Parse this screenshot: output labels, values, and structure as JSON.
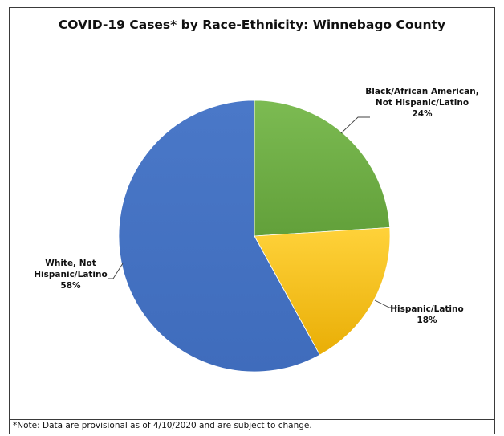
{
  "chart_data": {
    "type": "pie",
    "title": "COVID-19 Cases* by Race-Ethnicity: Winnebago County",
    "slices": [
      {
        "label_lines": [
          "Black/African American,",
          "Not Hispanic/Latino"
        ],
        "value": 24,
        "value_label": "24%",
        "color": "#70ad47"
      },
      {
        "label_lines": [
          "Hispanic/Latino"
        ],
        "value": 18,
        "value_label": "18%",
        "color": "#ffc000"
      },
      {
        "label_lines": [
          "White, Not",
          "Hispanic/Latino"
        ],
        "value": 58,
        "value_label": "58%",
        "color": "#4472c4"
      }
    ],
    "legend": "none",
    "data_labels": "outside with leader lines"
  },
  "footnote": "*Note: Data are provisional as of 4/10/2020 and are subject to change."
}
